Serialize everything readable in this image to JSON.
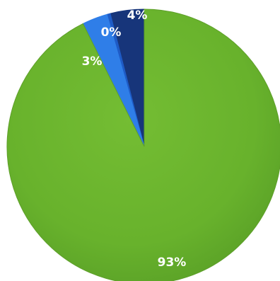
{
  "chart_data": {
    "type": "pie",
    "slices": [
      {
        "label": "4%",
        "value": 4,
        "color": "#17357a"
      },
      {
        "label": "0%",
        "value": 0.4,
        "color": "#1e5bc6"
      },
      {
        "label": "3%",
        "value": 3,
        "color": "#2f7ee8"
      },
      {
        "label": "93%",
        "value": 93,
        "color": "#6cb52f"
      }
    ],
    "start_angle_deg": 0,
    "direction": "counterclockwise",
    "grid": false,
    "legend": "none"
  }
}
